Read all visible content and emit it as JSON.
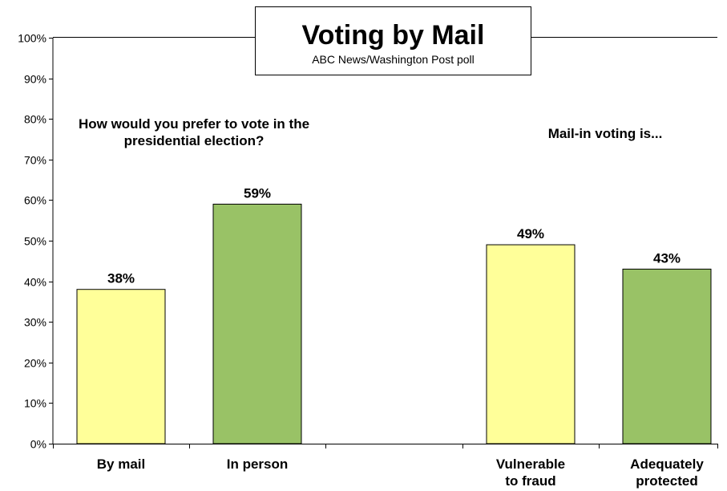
{
  "chart_data": {
    "type": "bar",
    "title": "Voting by Mail",
    "subtitle": "ABC News/Washington  Post poll",
    "ylim": [
      0,
      100
    ],
    "yticks": [
      "0%",
      "10%",
      "20%",
      "30%",
      "40%",
      "50%",
      "60%",
      "70%",
      "80%",
      "90%",
      "100%"
    ],
    "grid": false,
    "groups": [
      {
        "annotation": "How would you prefer to vote in the presidential election?",
        "bars": [
          {
            "category": "By mail",
            "value": 38,
            "label": "38%",
            "color": "#ffff99"
          },
          {
            "category": "In person",
            "value": 59,
            "label": "59%",
            "color": "#99c266"
          }
        ]
      },
      {
        "annotation": "Mail-in voting is...",
        "bars": [
          {
            "category": "Vulnerable to fraud",
            "value": 49,
            "label": "49%",
            "color": "#ffff99"
          },
          {
            "category": "Adequately protected",
            "value": 43,
            "label": "43%",
            "color": "#99c266"
          }
        ]
      }
    ]
  }
}
